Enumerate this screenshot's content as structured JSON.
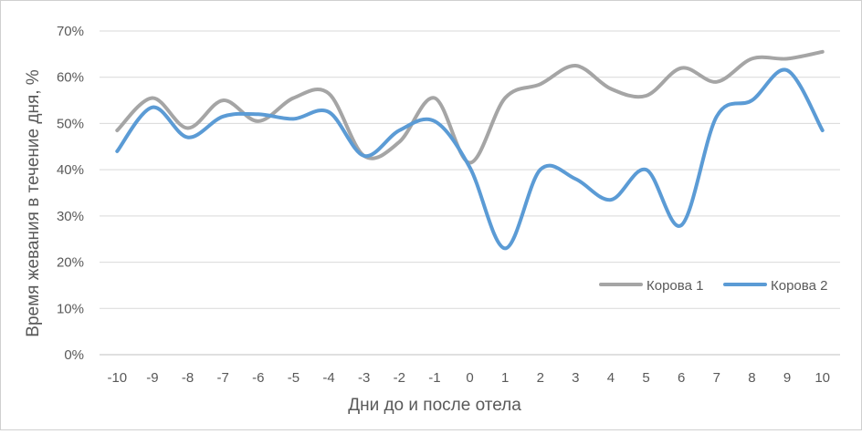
{
  "chart_data": {
    "type": "line",
    "title": "",
    "xlabel": "Дни до и после отела",
    "ylabel": "Время жевания в течение дня, %",
    "ylim": [
      0,
      70
    ],
    "y_ticks": [
      0,
      10,
      20,
      30,
      40,
      50,
      60,
      70
    ],
    "y_tick_labels": [
      "0%",
      "10%",
      "20%",
      "30%",
      "40%",
      "50%",
      "60%",
      "70%"
    ],
    "categories": [
      "-10",
      "-9",
      "-8",
      "-7",
      "-6",
      "-5",
      "-4",
      "-3",
      "-2",
      "-1",
      "0",
      "1",
      "2",
      "3",
      "4",
      "5",
      "6",
      "7",
      "8",
      "9",
      "10"
    ],
    "grid": true,
    "smooth": true,
    "legend": "right",
    "series": [
      {
        "name": "Корова 1",
        "color": "#a5a5a5",
        "values": [
          48.5,
          55.5,
          49,
          55,
          50.5,
          55.5,
          56.5,
          43,
          46,
          55.5,
          41.5,
          55.5,
          58.5,
          62.5,
          57.5,
          56,
          62,
          59,
          64,
          64,
          65.5
        ]
      },
      {
        "name": "Корова 2",
        "color": "#5b9bd5",
        "values": [
          44,
          53.5,
          47,
          51.5,
          52,
          51,
          52.5,
          43,
          48.5,
          50.5,
          40.5,
          23,
          40,
          38,
          33.5,
          40,
          28,
          51.5,
          55,
          61.5,
          48.5
        ]
      }
    ]
  }
}
